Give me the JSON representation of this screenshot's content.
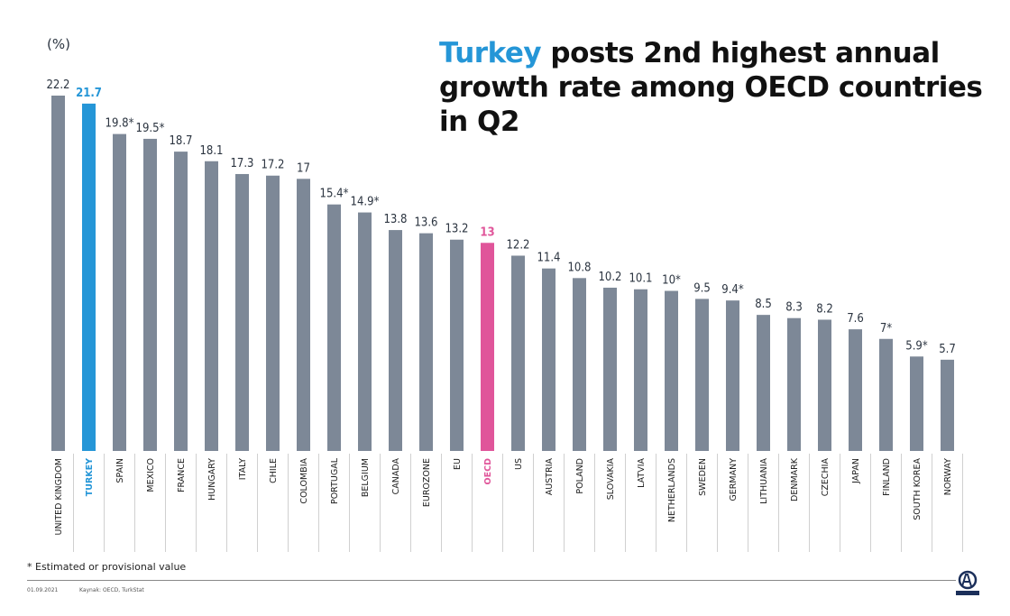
{
  "title": {
    "highlight": "Turkey",
    "rest": " posts 2nd highest annual growth rate among OECD countries in Q2"
  },
  "footnote": "* Estimated or provisional value",
  "footer": {
    "date": "01.09.2021",
    "source": "Kaynak: OECD, TurkStat",
    "logo_text": "ANADOLU AJANSI"
  },
  "colors": {
    "default_bar": "#7d8897",
    "turkey": "#2596d7",
    "oecd": "#e0559a"
  },
  "chart_data": {
    "type": "bar",
    "ylabel": "(%)",
    "ylim": [
      0,
      22.2
    ],
    "grid": false,
    "categories": [
      "UNITED KINGDOM",
      "TURKEY",
      "SPAIN",
      "MEXICO",
      "FRANCE",
      "HUNGARY",
      "ITALY",
      "CHILE",
      "COLOMBIA",
      "PORTUGAL",
      "BELGIUM",
      "CANADA",
      "EUROZONE",
      "EU",
      "OECD",
      "US",
      "AUSTRIA",
      "POLAND",
      "SLOVAKIA",
      "LATVIA",
      "NETHERLANDS",
      "SWEDEN",
      "GERMANY",
      "LITHUANIA",
      "DENMARK",
      "CZECHIA",
      "JAPAN",
      "FINLAND",
      "SOUTH KOREA",
      "NORWAY"
    ],
    "values": [
      22.2,
      21.7,
      19.8,
      19.5,
      18.7,
      18.1,
      17.3,
      17.2,
      17,
      15.4,
      14.9,
      13.8,
      13.6,
      13.2,
      13,
      12.2,
      11.4,
      10.8,
      10.2,
      10.1,
      10,
      9.5,
      9.4,
      8.5,
      8.3,
      8.2,
      7.6,
      7,
      5.9,
      5.7
    ],
    "labels": [
      "22.2",
      "21.7",
      "19.8*",
      "19.5*",
      "18.7",
      "18.1",
      "17.3",
      "17.2",
      "17",
      "15.4*",
      "14.9*",
      "13.8",
      "13.6",
      "13.2",
      "13",
      "12.2",
      "11.4",
      "10.8",
      "10.2",
      "10.1",
      "10*",
      "9.5",
      "9.4*",
      "8.5",
      "8.3",
      "8.2",
      "7.6",
      "7*",
      "5.9*",
      "5.7"
    ],
    "highlight": {
      "TURKEY": "#2596d7",
      "OECD": "#e0559a"
    }
  }
}
